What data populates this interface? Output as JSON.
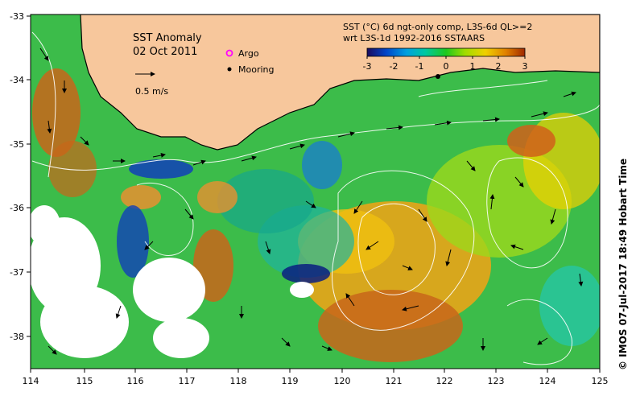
{
  "map": {
    "title": "SST Anomaly",
    "date": "02 Oct 2011",
    "scale_label": "0.5 m/s",
    "legend": {
      "argo_label": "Argo",
      "mooring_label": "Mooring",
      "argo_color": "#ff00ff",
      "mooring_color": "#000000"
    },
    "colorbar": {
      "title_line1": "SST (°C) 6d ngt-only comp, L3S-6d QL>=2",
      "title_line2": "wrt L3S-1d 1992-2016 SSTAARS",
      "ticks": [
        "-3",
        "-2",
        "-1",
        "0",
        "1",
        "2",
        "3"
      ],
      "stops": [
        "#1a0a5e",
        "#0044c8",
        "#00a0e0",
        "#00c8a0",
        "#1ec81e",
        "#a0dc00",
        "#f0d000",
        "#e08000",
        "#a02800"
      ]
    },
    "x_ticks": [
      "114",
      "115",
      "116",
      "117",
      "118",
      "119",
      "120",
      "121",
      "122",
      "123",
      "124",
      "125"
    ],
    "y_ticks": [
      "-33",
      "-34",
      "-35",
      "-36",
      "-37",
      "-38"
    ],
    "credit": "© IMOS 07-Jul-2017 18:49 Hobart Time",
    "colors": {
      "land": "#f7c79c",
      "coast": "#000000",
      "ocean_base": "#3cbc4a",
      "missing": "#ffffff"
    }
  }
}
